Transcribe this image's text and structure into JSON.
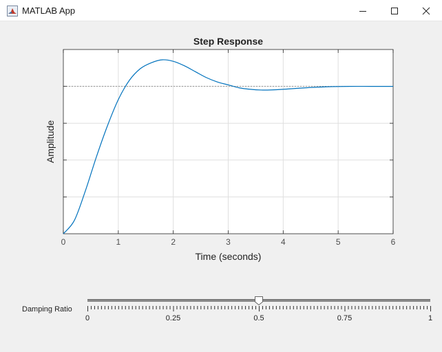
{
  "window": {
    "title": "MATLAB App",
    "controls": [
      "minimize-icon",
      "maximize-icon",
      "close-icon"
    ]
  },
  "chart_data": {
    "type": "line",
    "title": "Step Response",
    "xlabel": "Time (seconds)",
    "ylabel": "Amplitude",
    "xlim": [
      0,
      6
    ],
    "ylim": [
      0,
      1.25
    ],
    "xticks": [
      0,
      1,
      2,
      3,
      4,
      5,
      6
    ],
    "xtick_labels": [
      "0",
      "1",
      "2",
      "3",
      "4",
      "5",
      "6"
    ],
    "yticks": [
      0.25,
      0.5,
      0.75,
      1.0
    ],
    "grid": true,
    "reference_line": 1.0,
    "series": [
      {
        "x": [
          0,
          0.2,
          0.4,
          0.6,
          0.8,
          1.0,
          1.2,
          1.4,
          1.6,
          1.8,
          2.0,
          2.2,
          2.4,
          2.6,
          2.8,
          3.0,
          3.2,
          3.4,
          3.6,
          3.8,
          4.0,
          4.4,
          4.8,
          5.2,
          5.6,
          6.0
        ],
        "y": [
          0,
          0.09,
          0.29,
          0.52,
          0.73,
          0.91,
          1.04,
          1.12,
          1.16,
          1.18,
          1.17,
          1.14,
          1.1,
          1.06,
          1.03,
          1.01,
          0.99,
          0.98,
          0.975,
          0.976,
          0.98,
          0.99,
          0.997,
          1.0,
          1.0,
          1.0
        ],
        "color": "#0072bd"
      }
    ]
  },
  "slider": {
    "label": "Damping Ratio",
    "value": 0.5,
    "min": 0,
    "max": 1,
    "tick_labels": [
      "0",
      "0.25",
      "0.5",
      "0.75",
      "1"
    ],
    "tick_values": [
      0,
      0.25,
      0.5,
      0.75,
      1
    ]
  }
}
